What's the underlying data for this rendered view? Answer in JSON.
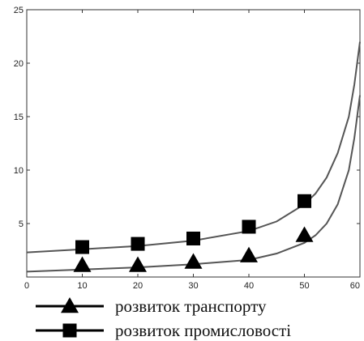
{
  "chart_data": {
    "type": "line",
    "title": "",
    "xlabel": "",
    "ylabel": "",
    "xlim": [
      0,
      60
    ],
    "ylim": [
      0,
      25
    ],
    "x_ticks": [
      "0",
      "10",
      "20",
      "30",
      "40",
      "50",
      "60"
    ],
    "y_ticks": [
      "5",
      "10",
      "15",
      "20",
      "25"
    ],
    "grid": false,
    "legend_position": "bottom",
    "series": [
      {
        "name": "розвиток транспорту",
        "marker": "triangle",
        "color": "#000000",
        "line_color": "#555555",
        "markers": [
          [
            10,
            1.1
          ],
          [
            20,
            1.1
          ],
          [
            30,
            1.4
          ],
          [
            40,
            2.0
          ],
          [
            50,
            3.9
          ]
        ],
        "curve": [
          [
            0,
            0.5
          ],
          [
            10,
            0.7
          ],
          [
            20,
            0.9
          ],
          [
            30,
            1.2
          ],
          [
            40,
            1.6
          ],
          [
            45,
            2.2
          ],
          [
            50,
            3.2
          ],
          [
            52,
            3.9
          ],
          [
            54,
            5.0
          ],
          [
            56,
            6.8
          ],
          [
            58,
            10.0
          ],
          [
            59,
            13.0
          ],
          [
            60,
            17.0
          ]
        ]
      },
      {
        "name": "розвиток промисловості",
        "marker": "square",
        "color": "#000000",
        "line_color": "#555555",
        "markers": [
          [
            10,
            2.8
          ],
          [
            20,
            3.1
          ],
          [
            30,
            3.6
          ],
          [
            40,
            4.7
          ],
          [
            50,
            7.1
          ]
        ],
        "curve": [
          [
            0,
            2.3
          ],
          [
            10,
            2.6
          ],
          [
            20,
            2.9
          ],
          [
            30,
            3.4
          ],
          [
            40,
            4.3
          ],
          [
            45,
            5.2
          ],
          [
            50,
            6.8
          ],
          [
            52,
            7.8
          ],
          [
            54,
            9.3
          ],
          [
            56,
            11.6
          ],
          [
            58,
            15.0
          ],
          [
            59,
            18.0
          ],
          [
            60,
            22.0
          ]
        ]
      }
    ]
  }
}
